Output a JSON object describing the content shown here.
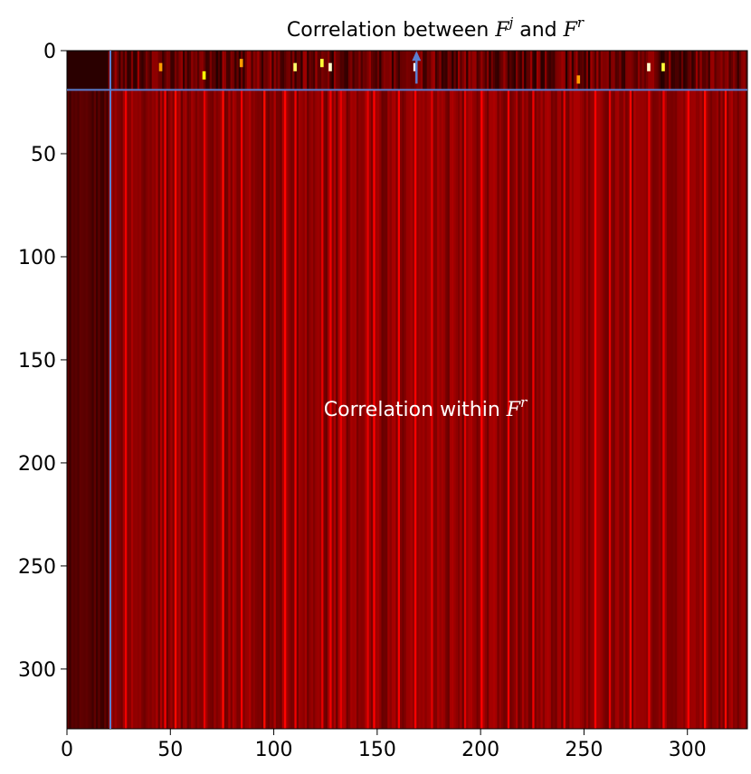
{
  "chart_data": {
    "type": "heatmap",
    "title": "",
    "xlabel": "",
    "ylabel": "",
    "xlim": [
      0,
      329
    ],
    "ylim": [
      329,
      0
    ],
    "x_ticks": [
      0,
      50,
      100,
      150,
      200,
      250,
      300
    ],
    "y_ticks": [
      0,
      50,
      100,
      150,
      200,
      250,
      300
    ],
    "x_tick_labels": [
      "0",
      "50",
      "100",
      "150",
      "200",
      "250",
      "300"
    ],
    "y_tick_labels": [
      "0",
      "50",
      "100",
      "150",
      "200",
      "250",
      "300"
    ],
    "rows": 329,
    "cols": 329,
    "colormap": "hot",
    "value_range": [
      0,
      1
    ],
    "background_level": 0.2,
    "dark_block_cols": [
      0,
      20
    ],
    "bright_stripe_cols": [
      28,
      47,
      52,
      66,
      75,
      84,
      95,
      105,
      110,
      123,
      127,
      132,
      145,
      148,
      160,
      168,
      176,
      192,
      200,
      213,
      225,
      240,
      255,
      262,
      272,
      281,
      288,
      300,
      308,
      318
    ],
    "bright_peaks_top": [
      {
        "x": 127,
        "y": 8,
        "value": 0.95
      },
      {
        "x": 168,
        "y": 8,
        "value": 1.0
      },
      {
        "x": 110,
        "y": 8,
        "value": 0.85
      },
      {
        "x": 281,
        "y": 8,
        "value": 0.95
      },
      {
        "x": 288,
        "y": 8,
        "value": 0.8
      },
      {
        "x": 66,
        "y": 12,
        "value": 0.75
      },
      {
        "x": 123,
        "y": 6,
        "value": 0.8
      },
      {
        "x": 247,
        "y": 14,
        "value": 0.6
      },
      {
        "x": 84,
        "y": 6,
        "value": 0.6
      },
      {
        "x": 45,
        "y": 8,
        "value": 0.6
      }
    ],
    "divider_row": 19,
    "divider_col": 21,
    "divider_color": "#5b7fd0",
    "annotations": {
      "top_prefix": "Correlation between ",
      "top_sym1_base": "F",
      "top_sym1_sup": "j",
      "top_middle": " and ",
      "top_sym2_base": "F",
      "top_sym2_sup": "r",
      "center_prefix": "Correlation within ",
      "center_sym_base": "F",
      "center_sym_sup": "r"
    },
    "arrow": {
      "x": 169,
      "from_y": 16,
      "to_y": 1
    }
  }
}
